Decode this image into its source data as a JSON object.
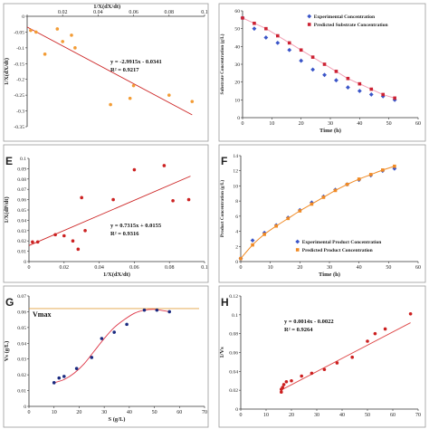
{
  "chart_data": [
    {
      "panel": "",
      "type": "scatter",
      "xlabel": "1/X(dX/dt)",
      "ylabel": "1/X(dX/dt)",
      "xlim": [
        0,
        0.1
      ],
      "ylim": [
        -0.35,
        0
      ],
      "xticks": [
        "",
        "0.02",
        "0.04",
        "0.06",
        "0.08",
        "0.1"
      ],
      "yticks": [
        "0",
        "-0.05",
        "-0.1",
        "-0.15",
        "-0.2",
        "-0.25",
        "-0.3",
        "-0.35"
      ],
      "xticks_position": "top",
      "series": [
        {
          "marker_color": "#f39c35",
          "line_color": "#cc2222",
          "points": [
            [
              0.002,
              -0.045
            ],
            [
              0.005,
              -0.05
            ],
            [
              0.01,
              -0.12
            ],
            [
              0.017,
              -0.04
            ],
            [
              0.02,
              -0.08
            ],
            [
              0.025,
              -0.06
            ],
            [
              0.027,
              -0.1
            ],
            [
              0.047,
              -0.28
            ],
            [
              0.058,
              -0.26
            ],
            [
              0.06,
              -0.22
            ],
            [
              0.08,
              -0.25
            ],
            [
              0.093,
              -0.27
            ]
          ],
          "fit": [
            [
              0,
              -0.0341
            ],
            [
              0.093,
              -0.3123
            ]
          ]
        }
      ],
      "annotation": [
        "y = -2.9915x - 0.0341",
        "R² = 0.9217"
      ]
    },
    {
      "panel": "",
      "type": "scatter",
      "xlabel": "Time (h)",
      "ylabel": "Substrate Concentration (g/L)",
      "xlim": [
        0,
        60
      ],
      "ylim": [
        0,
        60
      ],
      "xticks": [
        "0",
        "10",
        "20",
        "30",
        "40",
        "50",
        "60"
      ],
      "yticks": [
        "0",
        "10",
        "20",
        "30",
        "40",
        "50",
        "60"
      ],
      "legend": "top-right",
      "series": [
        {
          "name": "Experimental Concentration",
          "marker": "diamond",
          "color": "#3a55c8",
          "points": [
            [
              0,
              56
            ],
            [
              4,
              50
            ],
            [
              8,
              45
            ],
            [
              12,
              42
            ],
            [
              16,
              38
            ],
            [
              20,
              32
            ],
            [
              24,
              27
            ],
            [
              28,
              24
            ],
            [
              32,
              21
            ],
            [
              36,
              17
            ],
            [
              40,
              15
            ],
            [
              44,
              13
            ],
            [
              48,
              12
            ],
            [
              52,
              10
            ]
          ]
        },
        {
          "name": "Predicted Substrate Concentration",
          "marker": "square",
          "color": "#cc2233",
          "points": [
            [
              0,
              56
            ],
            [
              4,
              53
            ],
            [
              8,
              50
            ],
            [
              12,
              46
            ],
            [
              16,
              42
            ],
            [
              20,
              38
            ],
            [
              24,
              34
            ],
            [
              28,
              30
            ],
            [
              32,
              26
            ],
            [
              36,
              22
            ],
            [
              40,
              19
            ],
            [
              44,
              16
            ],
            [
              48,
              13
            ],
            [
              52,
              11
            ]
          ]
        }
      ],
      "curve_color": "#f2a0b4"
    },
    {
      "panel": "E",
      "type": "scatter",
      "xlabel": "1/X(dX/dt)",
      "ylabel": "1/X(dP/dt)",
      "xlim": [
        0,
        0.1
      ],
      "ylim": [
        0,
        0.1
      ],
      "xticks": [
        "0",
        "0.02",
        "0.04",
        "0.06",
        "0.08",
        "0.1"
      ],
      "yticks": [
        "0",
        "0.01",
        "0.02",
        "0.03",
        "0.04",
        "0.05",
        "0.06",
        "0.07",
        "0.08",
        "0.09",
        "0.1"
      ],
      "series": [
        {
          "marker_color": "#cc2222",
          "line_color": "#cc2222",
          "points": [
            [
              0.002,
              0.019
            ],
            [
              0.005,
              0.019
            ],
            [
              0.015,
              0.026
            ],
            [
              0.02,
              0.025
            ],
            [
              0.025,
              0.02
            ],
            [
              0.028,
              0.012
            ],
            [
              0.03,
              0.062
            ],
            [
              0.032,
              0.03
            ],
            [
              0.048,
              0.06
            ],
            [
              0.06,
              0.089
            ],
            [
              0.077,
              0.093
            ],
            [
              0.082,
              0.059
            ],
            [
              0.091,
              0.06
            ]
          ],
          "fit": [
            [
              0,
              0.0155
            ],
            [
              0.092,
              0.0828
            ]
          ]
        }
      ],
      "annotation": [
        "y = 0.7315x + 0.0155",
        "R² = 0.9316"
      ]
    },
    {
      "panel": "F",
      "type": "scatter",
      "xlabel": "Time (h)",
      "ylabel": "Product Concentration (g/L)",
      "xlim": [
        0,
        60
      ],
      "ylim": [
        0,
        14
      ],
      "xticks": [
        "0",
        "10",
        "20",
        "30",
        "40",
        "50",
        "60"
      ],
      "yticks": [
        "0",
        "2",
        "4",
        "6",
        "8",
        "10",
        "12",
        "14"
      ],
      "legend": "bottom-right",
      "series": [
        {
          "name": "Experimental Product Concentration",
          "marker": "diamond",
          "color": "#3a55c8",
          "points": [
            [
              0,
              0.4
            ],
            [
              4,
              2.8
            ],
            [
              8,
              3.8
            ],
            [
              12,
              4.8
            ],
            [
              16,
              5.8
            ],
            [
              20,
              6.8
            ],
            [
              24,
              7.8
            ],
            [
              28,
              8.6
            ],
            [
              32,
              9.5
            ],
            [
              36,
              10.2
            ],
            [
              40,
              10.8
            ],
            [
              44,
              11.4
            ],
            [
              48,
              12
            ],
            [
              52,
              12.3
            ]
          ]
        },
        {
          "name": "Predicted Product Concentration",
          "marker": "square",
          "color": "#f08a24",
          "points": [
            [
              0,
              0.4
            ],
            [
              4,
              2.2
            ],
            [
              8,
              3.6
            ],
            [
              12,
              4.7
            ],
            [
              16,
              5.7
            ],
            [
              20,
              6.7
            ],
            [
              24,
              7.6
            ],
            [
              28,
              8.5
            ],
            [
              32,
              9.4
            ],
            [
              36,
              10.2
            ],
            [
              40,
              10.9
            ],
            [
              44,
              11.5
            ],
            [
              48,
              12.1
            ],
            [
              52,
              12.6
            ]
          ]
        }
      ],
      "curve_color": "#f08a24"
    },
    {
      "panel": "G",
      "type": "scatter",
      "xlabel": "S (g/L)",
      "ylabel": "Vs (g/L)",
      "xlim": [
        0,
        70
      ],
      "ylim": [
        0,
        0.07
      ],
      "xticks": [
        "0",
        "10",
        "20",
        "30",
        "40",
        "50",
        "60",
        "70"
      ],
      "yticks": [
        "0",
        "0.01",
        "0.02",
        "0.03",
        "0.04",
        "0.05",
        "0.06",
        "0.07"
      ],
      "vmax_label": "Vmax",
      "vmax_value": 0.062,
      "vmax_color": "#e0a040",
      "series": [
        {
          "marker_color": "#1a2a80",
          "curve_color": "#dd3344",
          "points": [
            [
              10,
              0.015
            ],
            [
              12,
              0.018
            ],
            [
              14,
              0.019
            ],
            [
              19,
              0.024
            ],
            [
              25,
              0.031
            ],
            [
              29,
              0.043
            ],
            [
              34,
              0.047
            ],
            [
              39,
              0.052
            ],
            [
              46,
              0.061
            ],
            [
              51,
              0.061
            ],
            [
              56,
              0.06
            ]
          ],
          "curve": [
            [
              10,
              0.015
            ],
            [
              14,
              0.017
            ],
            [
              18,
              0.021
            ],
            [
              22,
              0.027
            ],
            [
              26,
              0.035
            ],
            [
              30,
              0.043
            ],
            [
              34,
              0.05
            ],
            [
              38,
              0.055
            ],
            [
              42,
              0.059
            ],
            [
              46,
              0.061
            ],
            [
              50,
              0.0615
            ],
            [
              56,
              0.06
            ]
          ]
        }
      ]
    },
    {
      "panel": "H",
      "type": "scatter",
      "xlabel": "",
      "ylabel": "1/Vs",
      "xlim": [
        0,
        70
      ],
      "ylim": [
        0,
        0.12
      ],
      "xticks": [
        "0",
        "10",
        "20",
        "30",
        "40",
        "50",
        "60",
        "70"
      ],
      "yticks": [
        "0",
        "0.02",
        "0.04",
        "0.06",
        "0.08",
        "0.1",
        "0.12"
      ],
      "series": [
        {
          "marker_color": "#cc1f1f",
          "line_color": "#dd4444",
          "points": [
            [
              16,
              0.018
            ],
            [
              16,
              0.021
            ],
            [
              16.5,
              0.023
            ],
            [
              17,
              0.026
            ],
            [
              18,
              0.029
            ],
            [
              20,
              0.03
            ],
            [
              24,
              0.035
            ],
            [
              28,
              0.038
            ],
            [
              33,
              0.042
            ],
            [
              38,
              0.049
            ],
            [
              44,
              0.055
            ],
            [
              50,
              0.072
            ],
            [
              53,
              0.08
            ],
            [
              57,
              0.085
            ],
            [
              67,
              0.101
            ]
          ],
          "fit": [
            [
              16,
              0.0202
            ],
            [
              67,
              0.0916
            ]
          ]
        }
      ],
      "annotation": [
        "y = 0.0014x - 0.0022",
        "R² = 0.9264"
      ]
    }
  ]
}
